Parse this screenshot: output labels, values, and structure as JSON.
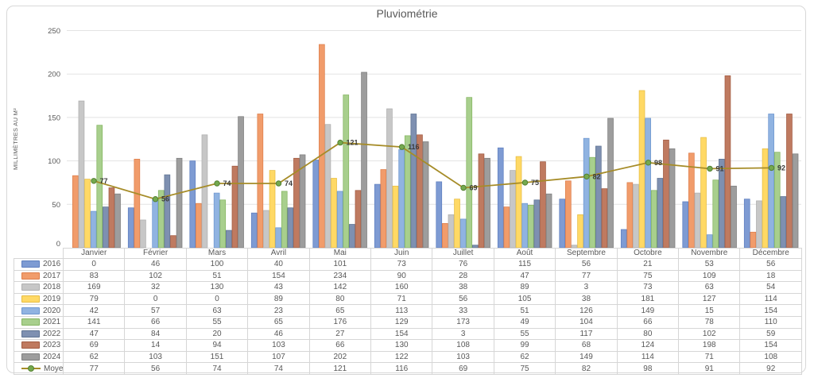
{
  "chart_data": {
    "type": "bar",
    "title": "Pluviométrie",
    "ylabel": "MILLIMÈTRES AU M²",
    "ylim": [
      0,
      250
    ],
    "yticks": [
      0,
      50,
      100,
      150,
      200,
      250
    ],
    "grid": true,
    "legend_position": "table-left",
    "categories": [
      "Janvier",
      "Février",
      "Mars",
      "Avril",
      "Mai",
      "Juin",
      "Juillet",
      "Août",
      "Septembre",
      "Octobre",
      "Novembre",
      "Décembre"
    ],
    "series": [
      {
        "name": "2016",
        "type": "bar",
        "color": "#7E9BD3",
        "border": "#5F7FBF",
        "values": [
          0,
          46,
          100,
          40,
          101,
          73,
          76,
          115,
          56,
          21,
          53,
          56
        ]
      },
      {
        "name": "2017",
        "type": "bar",
        "color": "#F19C6B",
        "border": "#DD7E4B",
        "values": [
          83,
          102,
          51,
          154,
          234,
          90,
          28,
          47,
          77,
          75,
          109,
          18
        ]
      },
      {
        "name": "2018",
        "type": "bar",
        "color": "#C7C7C7",
        "border": "#AFAFAF",
        "values": [
          169,
          32,
          130,
          43,
          142,
          160,
          38,
          89,
          3,
          73,
          63,
          54
        ]
      },
      {
        "name": "2019",
        "type": "bar",
        "color": "#FFD965",
        "border": "#E6BD42",
        "values": [
          79,
          0,
          0,
          89,
          80,
          71,
          56,
          105,
          38,
          181,
          127,
          114
        ]
      },
      {
        "name": "2020",
        "type": "bar",
        "color": "#90B3E1",
        "border": "#6E97D0",
        "values": [
          42,
          57,
          63,
          23,
          65,
          113,
          33,
          51,
          126,
          149,
          15,
          154
        ]
      },
      {
        "name": "2021",
        "type": "bar",
        "color": "#A8CF8D",
        "border": "#85B561",
        "values": [
          141,
          66,
          55,
          65,
          176,
          129,
          173,
          49,
          104,
          66,
          78,
          110
        ]
      },
      {
        "name": "2022",
        "type": "bar",
        "color": "#7E90B1",
        "border": "#5F7392",
        "values": [
          47,
          84,
          20,
          46,
          27,
          154,
          3,
          55,
          117,
          80,
          102,
          59
        ]
      },
      {
        "name": "2023",
        "type": "bar",
        "color": "#BF7A60",
        "border": "#A15A41",
        "values": [
          69,
          14,
          94,
          103,
          66,
          130,
          108,
          99,
          68,
          124,
          198,
          154
        ]
      },
      {
        "name": "2024",
        "type": "bar",
        "color": "#9D9D9D",
        "border": "#7E7E7E",
        "values": [
          62,
          103,
          151,
          107,
          202,
          122,
          103,
          62,
          149,
          114,
          71,
          108
        ]
      },
      {
        "name": "Moyenne",
        "type": "line",
        "color": "#A68C28",
        "marker_fill": "#74A94F",
        "marker_border": "#54802F",
        "label_color": "#3A3A3A",
        "data_labels": true,
        "values": [
          77,
          56,
          74,
          74,
          121,
          116,
          69,
          75,
          82,
          98,
          91,
          92
        ]
      }
    ],
    "colors": {
      "title_text": "#595959",
      "axis_text": "#595959",
      "gridline": "#E3E3E3",
      "table_border": "#D6D6D6",
      "table_text": "#595959"
    }
  }
}
